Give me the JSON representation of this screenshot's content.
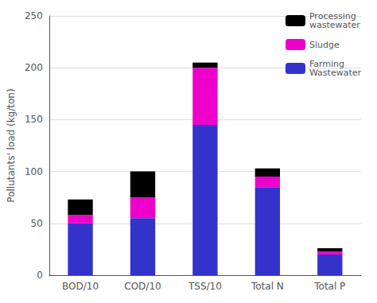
{
  "chart_data": {
    "type": "bar",
    "stacked": true,
    "categories": [
      "BOD/10",
      "COD/10",
      "TSS/10",
      "Total N",
      "Total P"
    ],
    "series": [
      {
        "name": "Farming\nWastewater",
        "color": "#3333cc",
        "values": [
          50,
          55,
          145,
          85,
          20
        ]
      },
      {
        "name": "Sludge",
        "color": "#ee00cc",
        "values": [
          8,
          20,
          55,
          10,
          3
        ]
      },
      {
        "name": "Processing\nwastewater",
        "color": "black",
        "values": [
          15,
          25,
          5,
          8,
          3
        ]
      }
    ],
    "ylabel": "Pollutants' load (kg/ton)",
    "ylim": [
      0,
      250
    ],
    "yticks": [
      0,
      50,
      100,
      150,
      200,
      250
    ],
    "grid": true,
    "legend": "upper right"
  }
}
